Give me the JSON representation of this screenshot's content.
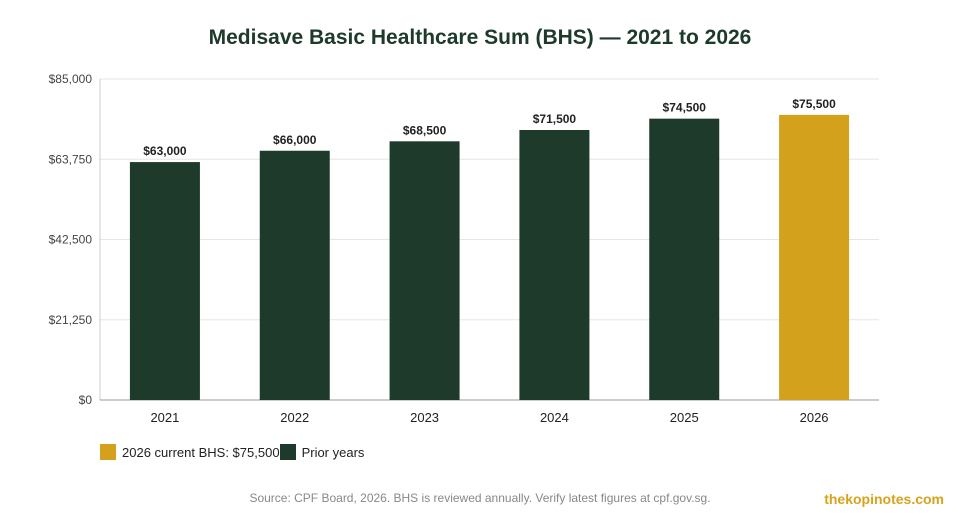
{
  "chart_data": {
    "type": "bar",
    "title": "Medisave Basic Healthcare Sum (BHS) — 2021 to 2026",
    "categories": [
      "2021",
      "2022",
      "2023",
      "2024",
      "2025",
      "2026"
    ],
    "values": [
      63000,
      66000,
      68500,
      71500,
      74500,
      75500
    ],
    "value_labels": [
      "$63,000",
      "$66,000",
      "$68,500",
      "$71,500",
      "$74,500",
      "$75,500"
    ],
    "highlight_index": 5,
    "ylim": [
      0,
      85000
    ],
    "yticks": [
      0,
      21250,
      42500,
      63750,
      85000
    ],
    "ytick_labels": [
      "$0",
      "$21,250",
      "$42,500",
      "$63,750",
      "$85,000"
    ],
    "grid": true,
    "legend_position": "bottom-left",
    "legend": [
      {
        "label": "2026 current BHS: $75,500",
        "color": "#d4a11c"
      },
      {
        "label": "Prior years",
        "color": "#1d3a2a"
      }
    ]
  },
  "colors": {
    "prior": "#1d3a2a",
    "current": "#d4a11c"
  },
  "footer": {
    "source": "Source: CPF Board, 2026. BHS is reviewed annually. Verify latest figures at cpf.gov.sg.",
    "brand": "thekopinotes.com"
  }
}
